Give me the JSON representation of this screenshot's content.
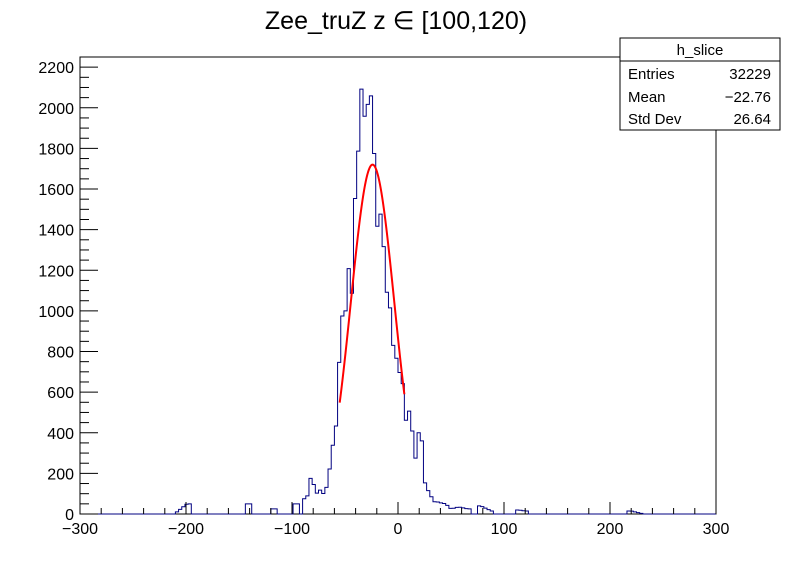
{
  "chart_data": {
    "type": "bar",
    "title": "Zee_truZ z  ∈ [100,120)",
    "xlabel": "",
    "ylabel": "",
    "xlim": [
      -300,
      300
    ],
    "ylim": [
      0,
      2250
    ],
    "bin_width": 3,
    "x_ticks": [
      -300,
      -200,
      -100,
      0,
      100,
      200,
      300
    ],
    "x_tick_labels": [
      "−300",
      "−200",
      "−100",
      "0",
      "100",
      "200",
      "300"
    ],
    "y_ticks": [
      0,
      200,
      400,
      600,
      800,
      1000,
      1200,
      1400,
      1600,
      1800,
      2000,
      2200
    ],
    "y_tick_labels": [
      "0",
      "200",
      "400",
      "600",
      "800",
      "1000",
      "1200",
      "1400",
      "1600",
      "1800",
      "2000",
      "2200"
    ],
    "grid": false,
    "legend": "none",
    "colors": {
      "histogram": "#000080",
      "fit": "#ff0000"
    },
    "peaks": [
      {
        "x": -199,
        "y": 50
      },
      {
        "x": -142,
        "y": 50
      },
      {
        "x": -116,
        "y": 25
      },
      {
        "x": -97,
        "y": 50
      },
      {
        "x": -86,
        "y": 75
      },
      {
        "x": -82,
        "y": 190
      },
      {
        "x": -77,
        "y": 100
      },
      {
        "x": -73,
        "y": 120
      },
      {
        "x": -69,
        "y": 90
      },
      {
        "x": -65,
        "y": 200
      },
      {
        "x": -62,
        "y": 330
      },
      {
        "x": -59,
        "y": 380
      },
      {
        "x": -56,
        "y": 700
      },
      {
        "x": -53,
        "y": 980
      },
      {
        "x": -50,
        "y": 950
      },
      {
        "x": -47,
        "y": 1250
      },
      {
        "x": -44,
        "y": 1000
      },
      {
        "x": -41,
        "y": 1520
      },
      {
        "x": -38,
        "y": 1720
      },
      {
        "x": -35,
        "y": 2120
      },
      {
        "x": -32,
        "y": 1950
      },
      {
        "x": -29,
        "y": 2000
      },
      {
        "x": -26,
        "y": 2100
      },
      {
        "x": -23,
        "y": 1850
      },
      {
        "x": -20,
        "y": 1400
      },
      {
        "x": -17,
        "y": 1500
      },
      {
        "x": -14,
        "y": 1360
      },
      {
        "x": -11,
        "y": 1100
      },
      {
        "x": -8,
        "y": 1050
      },
      {
        "x": -5,
        "y": 840
      },
      {
        "x": -2,
        "y": 780
      },
      {
        "x": 1,
        "y": 700
      },
      {
        "x": 4,
        "y": 680
      },
      {
        "x": 7,
        "y": 450
      },
      {
        "x": 10,
        "y": 520
      },
      {
        "x": 13,
        "y": 440
      },
      {
        "x": 16,
        "y": 250
      },
      {
        "x": 19,
        "y": 400
      },
      {
        "x": 22,
        "y": 400
      },
      {
        "x": 25,
        "y": 160
      },
      {
        "x": 28,
        "y": 120
      },
      {
        "x": 31,
        "y": 90
      },
      {
        "x": 34,
        "y": 60
      },
      {
        "x": 37,
        "y": 60
      },
      {
        "x": 40,
        "y": 55
      },
      {
        "x": 45,
        "y": 50
      },
      {
        "x": 50,
        "y": 25
      },
      {
        "x": 57,
        "y": 35
      },
      {
        "x": 66,
        "y": 25
      },
      {
        "x": 78,
        "y": 40
      },
      {
        "x": 88,
        "y": 15
      },
      {
        "x": 114,
        "y": 20
      },
      {
        "x": 120,
        "y": 15
      },
      {
        "x": 220,
        "y": 15
      }
    ],
    "fit": {
      "type": "gaussian",
      "amplitude": 1720,
      "mean": -24,
      "sigma": 20.5,
      "range": [
        -55,
        6
      ]
    },
    "stats_box": {
      "name": "h_slice",
      "rows": [
        {
          "label": "Entries",
          "value": "32229"
        },
        {
          "label": "Mean",
          "value": "−22.76"
        },
        {
          "label": "Std Dev",
          "value": "26.64"
        }
      ]
    }
  }
}
